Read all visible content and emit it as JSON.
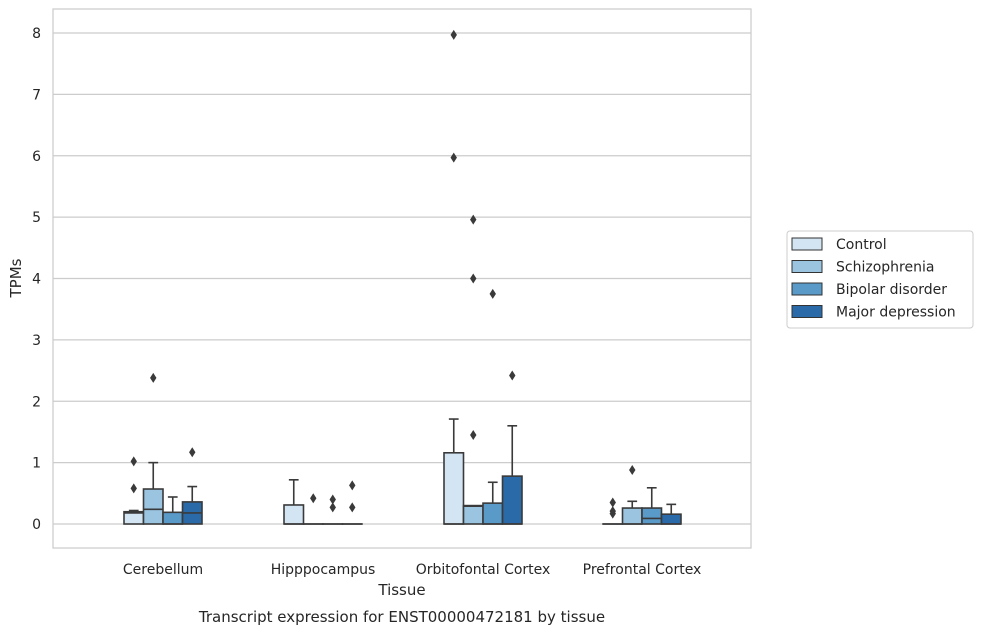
{
  "chart_data": {
    "type": "boxplot",
    "title": "Transcript expression for ENST00000472181 by tissue",
    "xlabel": "Tissue",
    "ylabel": "TPMs",
    "ylim": [
      -0.4,
      8.4
    ],
    "yticks": [
      0,
      1,
      2,
      3,
      4,
      5,
      6,
      7,
      8
    ],
    "grid": "horizontal",
    "legend_position": "right",
    "categories": [
      "Cerebellum",
      "Hipppocampus",
      "Orbitofontal Cortex",
      "Prefrontal Cortex"
    ],
    "series": [
      {
        "name": "Control",
        "color": "#d3e4f3",
        "boxes": [
          {
            "whislo": 0,
            "q1": 0,
            "med": 0.18,
            "q3": 0.2,
            "whishi": 0.22,
            "fliers": [
              0.58,
              1.02
            ]
          },
          {
            "whislo": 0,
            "q1": 0,
            "med": 0,
            "q3": 0.31,
            "whishi": 0.72,
            "fliers": []
          },
          {
            "whislo": 0,
            "q1": 0,
            "med": 0,
            "q3": 1.16,
            "whishi": 1.71,
            "fliers": [
              5.97,
              7.97
            ]
          },
          {
            "whislo": 0,
            "q1": 0,
            "med": 0,
            "q3": 0,
            "whishi": 0,
            "fliers": [
              0.17,
              0.21,
              0.35
            ]
          }
        ]
      },
      {
        "name": "Schizophrenia",
        "color": "#9bc4e0",
        "boxes": [
          {
            "whislo": 0,
            "q1": 0,
            "med": 0.24,
            "q3": 0.57,
            "whishi": 1.0,
            "fliers": [
              2.38
            ]
          },
          {
            "whislo": 0,
            "q1": 0,
            "med": 0,
            "q3": 0,
            "whishi": 0,
            "fliers": [
              0.42
            ]
          },
          {
            "whislo": 0,
            "q1": 0,
            "med": 0.29,
            "q3": 0.3,
            "whishi": 0.3,
            "fliers": [
              1.45,
              4.0,
              4.96
            ]
          },
          {
            "whislo": 0,
            "q1": 0,
            "med": 0,
            "q3": 0.26,
            "whishi": 0.37,
            "fliers": [
              0.88
            ]
          }
        ]
      },
      {
        "name": "Bipolar disorder",
        "color": "#5a9ac9",
        "boxes": [
          {
            "whislo": 0,
            "q1": 0,
            "med": 0,
            "q3": 0.19,
            "whishi": 0.44,
            "fliers": []
          },
          {
            "whislo": 0,
            "q1": 0,
            "med": 0,
            "q3": 0,
            "whishi": 0,
            "fliers": [
              0.27,
              0.4
            ]
          },
          {
            "whislo": 0,
            "q1": 0,
            "med": 0,
            "q3": 0.34,
            "whishi": 0.68,
            "fliers": [
              3.75
            ]
          },
          {
            "whislo": 0,
            "q1": 0,
            "med": 0.09,
            "q3": 0.26,
            "whishi": 0.59,
            "fliers": []
          }
        ]
      },
      {
        "name": "Major depression",
        "color": "#2a6aa8",
        "boxes": [
          {
            "whislo": 0,
            "q1": 0,
            "med": 0.18,
            "q3": 0.36,
            "whishi": 0.61,
            "fliers": [
              1.17
            ]
          },
          {
            "whislo": 0,
            "q1": 0,
            "med": 0,
            "q3": 0,
            "whishi": 0,
            "fliers": [
              0.27,
              0.63
            ]
          },
          {
            "whislo": 0,
            "q1": 0,
            "med": 0,
            "q3": 0.78,
            "whishi": 1.6,
            "fliers": [
              2.42
            ]
          },
          {
            "whislo": 0,
            "q1": 0,
            "med": 0,
            "q3": 0.16,
            "whishi": 0.32,
            "fliers": []
          }
        ]
      }
    ]
  }
}
